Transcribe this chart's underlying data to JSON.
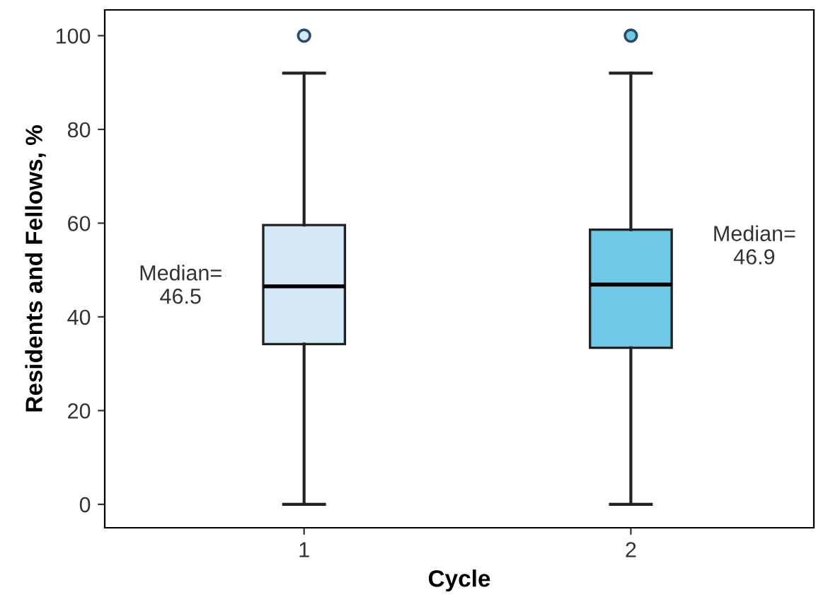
{
  "chart_data": {
    "type": "box",
    "xlabel": "Cycle",
    "ylabel": "Residents and Fellows, %",
    "categories": [
      "1",
      "2"
    ],
    "series": [
      {
        "colors": [
          "#d5e8f5",
          "#6ec8e6"
        ],
        "boxes": [
          {
            "low": 0,
            "q1": 34.2,
            "median": 46.5,
            "q3": 59.6,
            "high": 92,
            "outliers": [
              100
            ]
          },
          {
            "low": 0,
            "q1": 33.4,
            "median": 46.9,
            "q3": 58.6,
            "high": 92,
            "outliers": [
              100
            ]
          }
        ]
      }
    ],
    "ylim": [
      -5,
      105.5
    ],
    "yticks": [
      0,
      20,
      40,
      60,
      80,
      100
    ],
    "grid": false,
    "legend": false,
    "marker": "circle",
    "annotations": [
      "Median=\n46.5",
      "Median=\n46.9"
    ]
  }
}
